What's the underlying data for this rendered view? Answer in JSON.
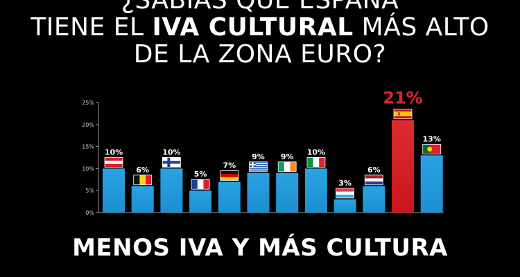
{
  "headline": {
    "line1": "¿SABÍAS QUE ESPAÑA",
    "line2_pre": "TIENE EL ",
    "line2_bold": "IVA CULTURAL",
    "line2_post": " MÁS ALTO",
    "line3": "DE LA ZONA EURO?"
  },
  "footer": "MENOS IVA Y MÁS CULTURA",
  "colors": {
    "bar": "#1c8fd1",
    "highlight_bar": "#c8161d",
    "highlight_label": "#e3202a",
    "axis": "#9a9a9a",
    "text": "#ffffff"
  },
  "chart_data": {
    "type": "bar",
    "y_ticks": [
      "0%",
      "5%",
      "10%",
      "15%",
      "20%",
      "25%"
    ],
    "ylim": [
      0,
      25
    ],
    "categories": [
      "austria-flag",
      "belgium-flag",
      "finland-flag",
      "france-flag",
      "germany-flag",
      "greece-flag",
      "ireland-flag",
      "italy-flag",
      "luxembourg-flag",
      "netherlands-flag",
      "spain-flag",
      "portugal-flag"
    ],
    "values": [
      10,
      6,
      10,
      5,
      7,
      9,
      9,
      10,
      3,
      6,
      21,
      13
    ],
    "labels": [
      "10%",
      "6%",
      "10%",
      "5%",
      "7%",
      "9%",
      "9%",
      "10%",
      "3%",
      "6%",
      "21%",
      "13%"
    ],
    "highlight_index": 10
  }
}
